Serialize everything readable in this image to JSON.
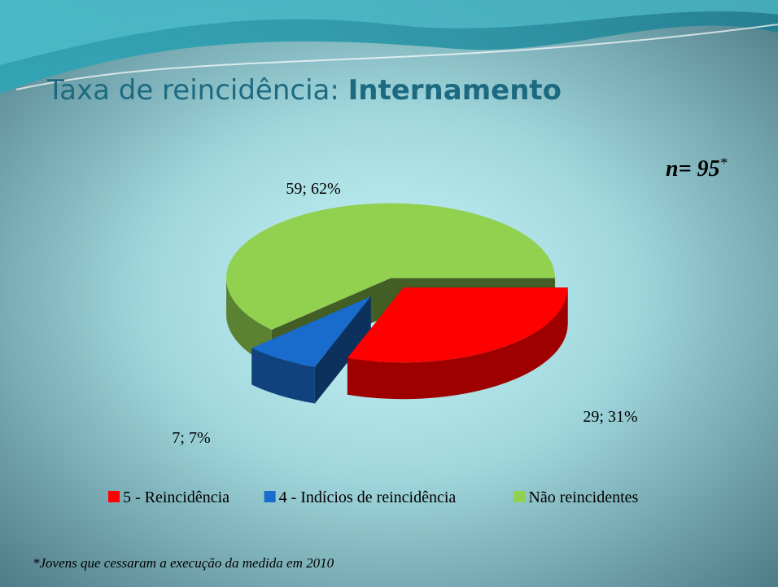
{
  "chart_data": {
    "type": "pie3d",
    "title": "Taxa de reincidência: ",
    "title_bold": "Internamento",
    "annotation": "n= 95",
    "annotation_mark": "*",
    "footnote": "*Jovens que cessaram a execução da medida em 2010",
    "categories": [
      "5 - Reincidência",
      "4 - Indícios de reincidência",
      "Não reincidentes"
    ],
    "values": [
      29,
      7,
      59
    ],
    "value_labels": [
      "29; 31%",
      "7; 7%",
      "59; 62%"
    ],
    "colors": [
      "#ff0000",
      "#1a6ccc",
      "#92d050"
    ],
    "legend": "bottom"
  }
}
